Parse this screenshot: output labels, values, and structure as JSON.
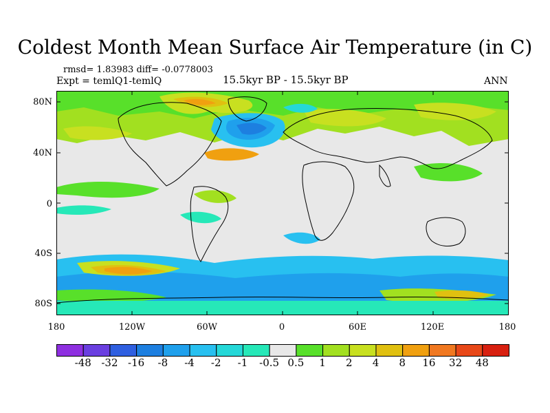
{
  "header": {
    "title": "Coldest Month Mean Surface Air Temperature (in C)",
    "stats": "rmsd= 1.83983 diff= -0.0778003",
    "experiment": "Expt = temlQ1-temlQ",
    "period": "15.5kyr BP - 15.5kyr BP",
    "season": "ANN"
  },
  "axes": {
    "lat_labels": [
      "80N",
      "40N",
      "0",
      "40S",
      "80S"
    ],
    "lon_labels": [
      "180",
      "120W",
      "60W",
      "0",
      "60E",
      "120E",
      "180"
    ]
  },
  "colorbar": {
    "colors": [
      "#8e2fe0",
      "#6a3fe0",
      "#2f5fe0",
      "#1d7fe0",
      "#1fa0ec",
      "#28c0f0",
      "#25d8d8",
      "#26e8b8",
      "#e8e8e8",
      "#58e02a",
      "#a2e020",
      "#c8e020",
      "#e0c010",
      "#f0a010",
      "#f07820",
      "#e84818",
      "#d82010"
    ],
    "labels": [
      "-48",
      "-32",
      "-16",
      "-8",
      "-4",
      "-2",
      "-1",
      "-0.5",
      "0.5",
      "1",
      "2",
      "4",
      "8",
      "16",
      "32",
      "48"
    ]
  }
}
